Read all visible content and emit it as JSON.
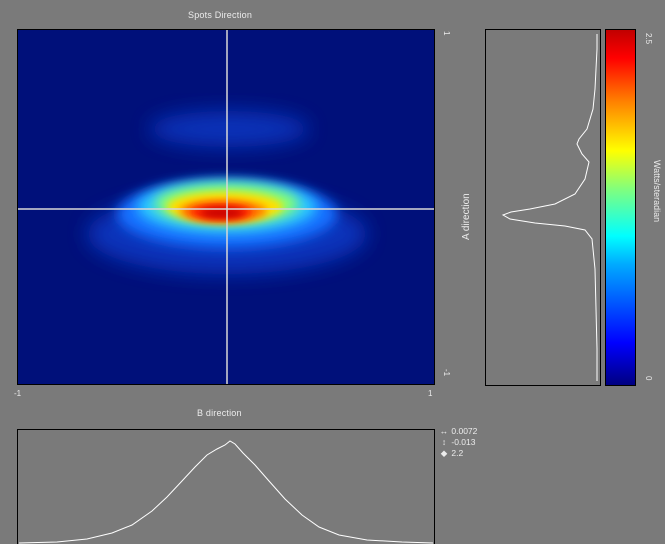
{
  "main_plot": {
    "title": "Spots Direction",
    "x_tick_min": "-1",
    "x_tick_max": "1",
    "y_tick_max": "1",
    "y_tick_min": "-1",
    "y_label": "A direction"
  },
  "bottom_plot": {
    "title": "B direction"
  },
  "colorbar": {
    "label": "Watts/steradian",
    "max_label": "2.5",
    "min_label": "0",
    "colors": [
      "#00007f",
      "#0000ff",
      "#007fff",
      "#00ffff",
      "#7fff7f",
      "#ffff00",
      "#ff7f00",
      "#ff0000",
      "#7f0000"
    ]
  },
  "readouts": {
    "horizontal_symbol": "↔",
    "horizontal_value": "0.0072",
    "vertical_symbol": "↕",
    "vertical_value": "-0.013",
    "intensity_symbol": "◆",
    "intensity_value": "2.2"
  },
  "colors": {
    "background": "#7a7a7a",
    "plot_background": "#00107a",
    "cursor_line": "#d8d8d8",
    "profile_line": "#ffffff"
  }
}
